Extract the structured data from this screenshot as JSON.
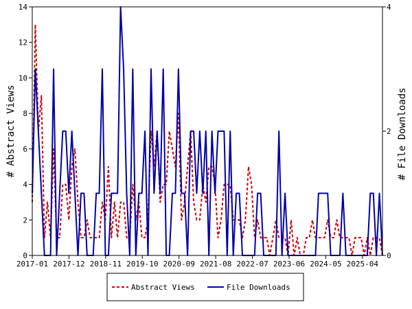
{
  "chart_data": {
    "type": "line",
    "title": "",
    "xlabel": "",
    "ylabel_left": "# Abstract Views",
    "ylabel_right": "# File Downloads",
    "x_range": [
      "2017-01",
      "2025-10"
    ],
    "x_tick_labels": [
      "2017-01",
      "2017-12",
      "2018-11",
      "2019-10",
      "2020-09",
      "2021-08",
      "2022-07",
      "2023-06",
      "2024-05",
      "2025-04"
    ],
    "ylim_left": [
      0,
      14
    ],
    "yticks_left": [
      0,
      2,
      4,
      6,
      8,
      10,
      12,
      14
    ],
    "ylim_right": [
      0,
      4
    ],
    "yticks_right": [
      0,
      2,
      4
    ],
    "grid": false,
    "legend_position": "bottom-center",
    "series": [
      {
        "name": "Abstract Views",
        "axis": "left",
        "color": "#cc0000",
        "style": "dashed",
        "values": [
          3,
          13,
          7,
          9,
          1,
          3,
          1,
          6,
          1,
          1,
          4,
          4,
          2,
          5,
          6,
          3,
          1,
          1,
          2,
          1,
          1,
          1,
          1,
          3,
          2,
          5,
          1,
          3,
          1,
          3,
          3,
          1,
          1,
          4,
          2,
          3,
          1,
          1,
          2,
          7,
          5,
          7,
          3,
          4,
          4,
          7,
          6,
          5,
          8,
          2,
          3,
          5,
          7,
          3,
          2,
          2,
          4,
          3,
          5,
          5,
          4,
          1,
          2,
          4,
          4,
          4,
          2,
          2,
          2,
          1,
          2,
          5,
          4,
          1,
          2,
          1,
          1,
          1,
          0,
          1,
          2,
          1,
          1,
          1,
          0,
          2,
          0,
          1,
          0,
          0,
          1,
          1,
          2,
          1,
          1,
          1,
          1,
          2,
          1,
          1,
          2,
          1,
          1,
          1,
          1,
          0,
          1,
          1,
          1,
          0,
          1,
          0,
          1,
          1,
          1,
          0
        ]
      },
      {
        "name": "File Downloads",
        "axis": "right",
        "color": "#0000aa",
        "style": "solid",
        "values": [
          1,
          3,
          2,
          1,
          0,
          0,
          0,
          3,
          0,
          1,
          2,
          2,
          1,
          2,
          1,
          0,
          1,
          1,
          0,
          0,
          0,
          1,
          1,
          3,
          0,
          0,
          1,
          1,
          1,
          4,
          3,
          1,
          0,
          3,
          0,
          1,
          1,
          2,
          0,
          3,
          1,
          2,
          1,
          3,
          0,
          0,
          1,
          1,
          3,
          1,
          1,
          0,
          2,
          2,
          1,
          2,
          1,
          2,
          0,
          2,
          1,
          2,
          2,
          2,
          0,
          2,
          0,
          1,
          1,
          0,
          0,
          0,
          0,
          0,
          1,
          1,
          0,
          0,
          0,
          0,
          0,
          2,
          0,
          1,
          0,
          0,
          0,
          0,
          0,
          0,
          0,
          0,
          0,
          0,
          1,
          1,
          1,
          1,
          0,
          0,
          0,
          0,
          1,
          0,
          0,
          0,
          0,
          0,
          0,
          0,
          0,
          1,
          1,
          0,
          1,
          0
        ]
      }
    ]
  }
}
